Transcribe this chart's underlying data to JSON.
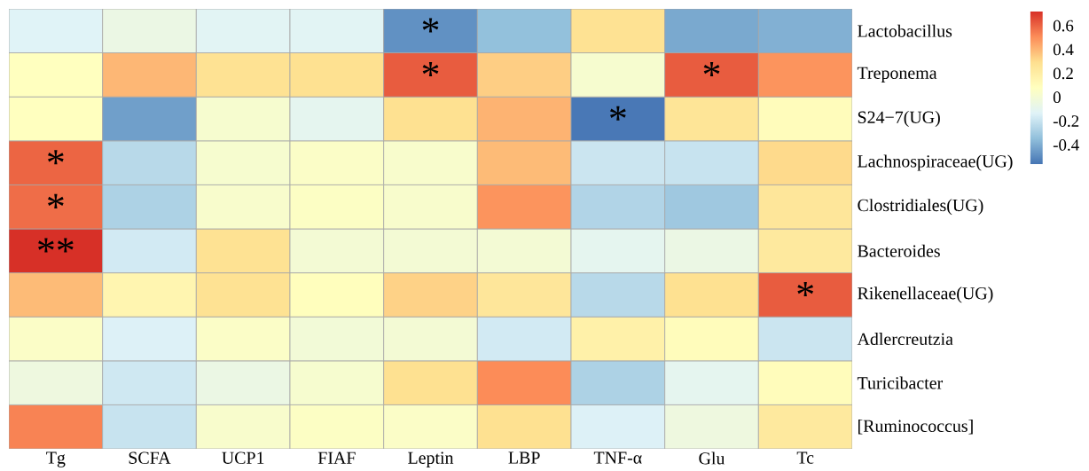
{
  "chart_data": {
    "type": "heatmap",
    "categories": [
      "Tg",
      "SCFA",
      "UCP1",
      "FIAF",
      "Leptin",
      "LBP",
      "TNF-α",
      "Glu",
      "Tc"
    ],
    "y_categories": [
      "Lactobacillus",
      "Treponema",
      "S24−7(UG)",
      "Lachnospiraceae(UG)",
      "Clostridiales(UG)",
      "Bacteroides",
      "Rikenellaceae(UG)",
      "Adlercreutzia",
      "Turicibacter",
      "[Ruminococcus]"
    ],
    "cells": [
      [
        -0.13,
        -0.06,
        -0.12,
        -0.12,
        -0.48,
        -0.34,
        0.28,
        -0.41,
        -0.39
      ],
      [
        0.08,
        0.4,
        0.28,
        0.29,
        0.62,
        0.34,
        0.02,
        0.62,
        0.49
      ],
      [
        0.08,
        -0.44,
        0.02,
        -0.1,
        0.29,
        0.41,
        -0.55,
        0.26,
        0.1
      ],
      [
        0.6,
        -0.24,
        0.02,
        0.05,
        0.03,
        0.39,
        -0.19,
        -0.2,
        0.31
      ],
      [
        0.58,
        -0.27,
        0.03,
        0.06,
        0.03,
        0.49,
        -0.26,
        -0.31,
        0.25
      ],
      [
        0.72,
        -0.17,
        0.28,
        0.0,
        0.0,
        0.0,
        -0.1,
        -0.06,
        0.23
      ],
      [
        0.39,
        0.15,
        0.28,
        0.09,
        0.33,
        0.25,
        -0.24,
        0.29,
        0.62
      ],
      [
        0.05,
        -0.14,
        0.05,
        -0.01,
        0.0,
        -0.17,
        0.18,
        0.1,
        -0.19
      ],
      [
        -0.04,
        -0.18,
        -0.06,
        0.02,
        0.29,
        0.51,
        -0.27,
        -0.1,
        0.1
      ],
      [
        0.53,
        -0.2,
        0.03,
        0.06,
        0.05,
        0.29,
        -0.14,
        -0.04,
        0.23
      ]
    ],
    "cell_labels": [
      [
        null,
        null,
        null,
        null,
        "*",
        null,
        null,
        null,
        null
      ],
      [
        null,
        null,
        null,
        null,
        "*",
        null,
        null,
        "*",
        null
      ],
      [
        null,
        null,
        null,
        null,
        null,
        null,
        "*",
        null,
        null
      ],
      [
        "*",
        null,
        null,
        null,
        null,
        null,
        null,
        null,
        null
      ],
      [
        "*",
        null,
        null,
        null,
        null,
        null,
        null,
        null,
        null
      ],
      [
        "**",
        null,
        null,
        null,
        null,
        null,
        null,
        null,
        null
      ],
      [
        null,
        null,
        null,
        null,
        null,
        null,
        null,
        null,
        "*"
      ],
      [
        null,
        null,
        null,
        null,
        null,
        null,
        null,
        null,
        null
      ],
      [
        null,
        null,
        null,
        null,
        null,
        null,
        null,
        null,
        null
      ],
      [
        null,
        null,
        null,
        null,
        null,
        null,
        null,
        null,
        null
      ]
    ],
    "clim": [
      -0.56,
      0.72
    ],
    "cticks": [
      -0.4,
      -0.2,
      0,
      0.2,
      0.4,
      0.6
    ]
  }
}
